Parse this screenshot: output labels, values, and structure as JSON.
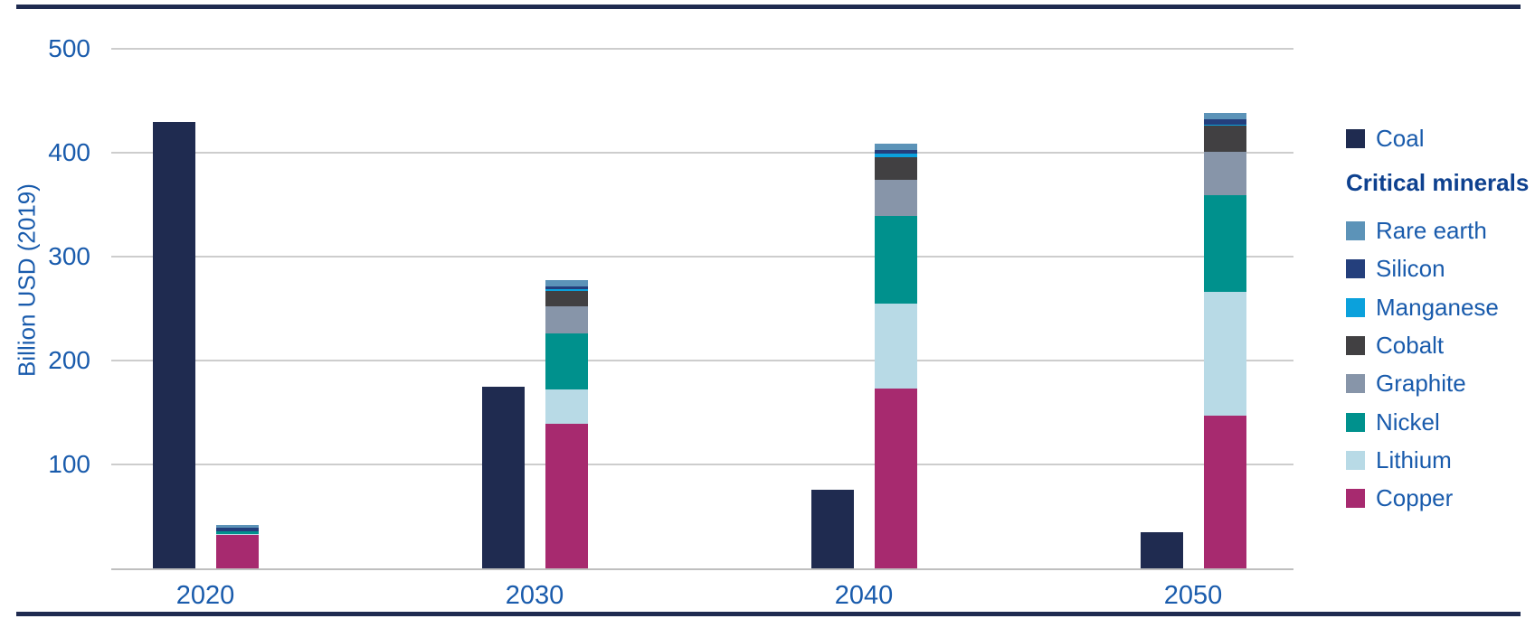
{
  "axis": {
    "y_title": "Billion USD (2019)",
    "y_ticks": [
      "500",
      "400",
      "300",
      "200",
      "100"
    ],
    "x_labels": [
      "2020",
      "2030",
      "2040",
      "2050"
    ]
  },
  "legend": {
    "coal_label": "Coal",
    "header": "Critical minerals",
    "items_top_to_bottom": [
      "Rare earth",
      "Silicon",
      "Manganese",
      "Cobalt",
      "Graphite",
      "Nickel",
      "Lithium",
      "Copper"
    ]
  },
  "colors": {
    "coal": "#1F2B50",
    "rare_earth": "#5C93B8",
    "silicon": "#243F7C",
    "manganese": "#0BA1DC",
    "cobalt": "#414042",
    "graphite": "#8795A9",
    "nickel": "#00918D",
    "lithium": "#B8DAE6",
    "copper": "#A72A6F",
    "gridline": "#CDCDCD",
    "text_blue": "#195BAC",
    "header_blue": "#0E418F",
    "border_navy": "#1F2B50"
  },
  "chart_data": {
    "type": "bar",
    "subtype": "per year: one Coal bar + one stacked Critical-minerals bar",
    "title": "",
    "ylabel": "Billion USD (2019)",
    "xlabel": "",
    "categories": [
      "2020",
      "2030",
      "2040",
      "2050"
    ],
    "ylim": [
      0,
      500
    ],
    "y_tick_values": [
      100,
      200,
      300,
      400,
      500
    ],
    "grid": true,
    "legend_position": "right",
    "coal_series": {
      "name": "Coal",
      "color": "#1F2B50",
      "values": [
        430,
        175,
        76,
        35
      ]
    },
    "minerals_series_bottom_to_top": [
      {
        "name": "Copper",
        "color": "#A72A6F",
        "values": [
          32,
          139,
          173,
          147
        ]
      },
      {
        "name": "Lithium",
        "color": "#B8DAE6",
        "values": [
          1,
          33,
          82,
          119
        ]
      },
      {
        "name": "Nickel",
        "color": "#00918D",
        "values": [
          3,
          54,
          84,
          93
        ]
      },
      {
        "name": "Graphite",
        "color": "#8795A9",
        "values": [
          0,
          26,
          35,
          42
        ]
      },
      {
        "name": "Cobalt",
        "color": "#414042",
        "values": [
          0,
          15,
          22,
          25
        ]
      },
      {
        "name": "Manganese",
        "color": "#0BA1DC",
        "values": [
          0,
          2,
          3,
          1
        ]
      },
      {
        "name": "Silicon",
        "color": "#243F7C",
        "values": [
          3,
          2,
          4,
          5
        ]
      },
      {
        "name": "Rare earth",
        "color": "#5C93B8",
        "values": [
          3,
          6,
          6,
          6
        ]
      }
    ],
    "minerals_totals": [
      42,
      277,
      409,
      438
    ]
  }
}
